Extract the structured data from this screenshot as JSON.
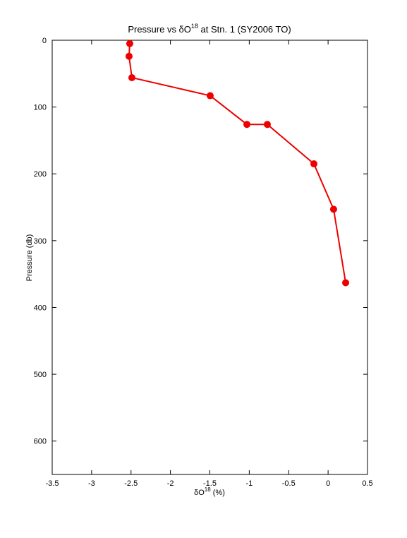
{
  "chart_data": {
    "type": "line",
    "title": {
      "text": "Pressure vs δO",
      "superscript": "18",
      "rest": " at Stn. 1 (SY2006 TO)"
    },
    "xlabel": {
      "text": "δO",
      "superscript": "18",
      "rest": " (%)"
    },
    "ylabel": "Pressure (db)",
    "x": [
      -2.516,
      -2.525,
      -2.489,
      -1.496,
      -1.03,
      -0.771,
      -0.18,
      0.07,
      0.223
    ],
    "series": [
      {
        "color": "#ee0000",
        "values": [
          5,
          24,
          56,
          83,
          126,
          126,
          185,
          253,
          363
        ]
      }
    ],
    "xlim": [
      -3.5,
      0.5
    ],
    "xticks": [
      -3.5,
      -3,
      -2.5,
      -2,
      -1.5,
      -1,
      -0.5,
      0,
      0.5
    ],
    "ylim": [
      0,
      650
    ],
    "yticks": [
      0,
      100,
      200,
      300,
      400,
      500,
      600
    ],
    "y_reversed": true,
    "markers": true,
    "grid": false,
    "box": true
  }
}
